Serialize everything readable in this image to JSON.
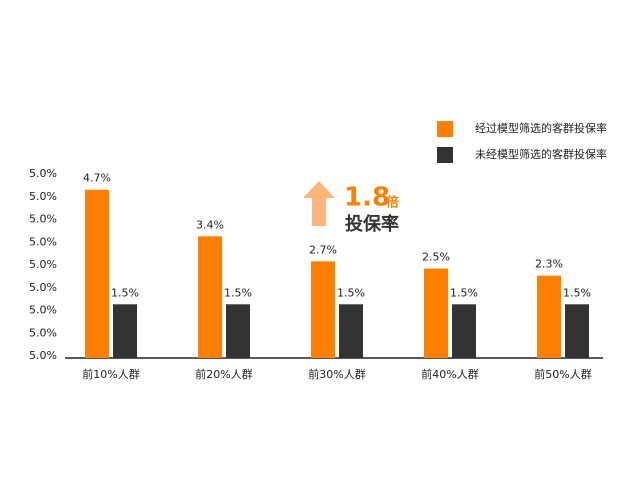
{
  "chart_data": {
    "type": "bar",
    "categories": [
      "前10%人群",
      "前20%人群",
      "前30%人群",
      "前40%人群",
      "前50%人群"
    ],
    "series": [
      {
        "name": "经过模型筛选的客群投保率",
        "color": "#ff7f00",
        "values": [
          4.7,
          3.4,
          2.7,
          2.5,
          2.3
        ],
        "value_labels": [
          "4.7%",
          "3.4%",
          "2.7%",
          "2.5%",
          "2.3%"
        ]
      },
      {
        "name": "未经模型筛选的客群投保率",
        "color": "#333333",
        "values": [
          1.5,
          1.5,
          1.5,
          1.5,
          1.5
        ],
        "value_labels": [
          "1.5%",
          "1.5%",
          "1.5%",
          "1.5%",
          "1.5%"
        ]
      }
    ],
    "y_axis_labels": [
      "5.0%",
      "5.0%",
      "5.0%",
      "5.0%",
      "5.0%",
      "5.0%",
      "5.0%",
      "5.0%",
      "5.0%"
    ],
    "ylim": [
      0,
      5.0
    ],
    "legend": "top-right",
    "annotation": {
      "multiple": "1.8",
      "unit": "倍",
      "text": "投保率"
    }
  }
}
